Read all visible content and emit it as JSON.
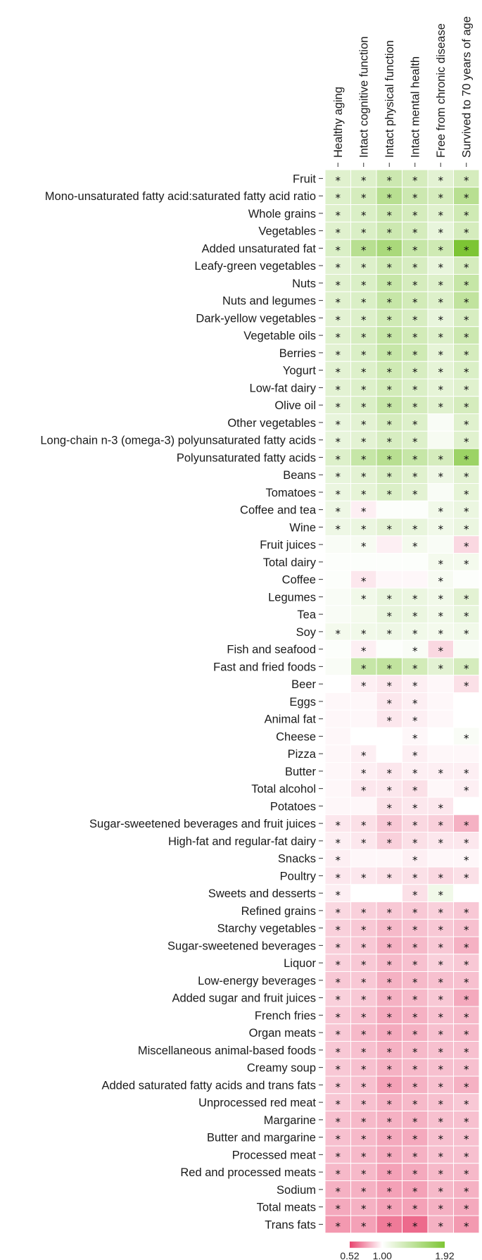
{
  "chart_data": {
    "type": "heatmap",
    "title": "",
    "columns": [
      "Healthy aging",
      "Intact cognitive function",
      "Intact physical function",
      "Intact mental health",
      "Free from chronic disease",
      "Survived to 70 years of age"
    ],
    "rows": [
      "Fruit",
      "Mono-unsaturated fatty acid:saturated fatty acid ratio",
      "Whole grains",
      "Vegetables",
      "Added unsaturated fat",
      "Leafy-green vegetables",
      "Nuts",
      "Nuts and legumes",
      "Dark-yellow vegetables",
      "Vegetable oils",
      "Berries",
      "Yogurt",
      "Low-fat dairy",
      "Olive oil",
      "Other vegetables",
      "Long-chain n-3 (omega-3) polyunsaturated fatty acids",
      "Polyunsaturated fatty acids",
      "Beans",
      "Tomatoes",
      "Coffee and tea",
      "Wine",
      "Fruit juices",
      "Total dairy",
      "Coffee",
      "Legumes",
      "Tea",
      "Soy",
      "Fish and seafood",
      "Fast and fried foods",
      "Beer",
      "Eggs",
      "Animal fat",
      "Cheese",
      "Pizza",
      "Butter",
      "Total alcohol",
      "Potatoes",
      "Sugar-sweetened beverages and fruit juices",
      "High-fat and regular-fat dairy",
      "Snacks",
      "Poultry",
      "Sweets and desserts",
      "Refined grains",
      "Starchy vegetables",
      "Sugar-sweetened beverages",
      "Liquor",
      "Low-energy beverages",
      "Added sugar and fruit juices",
      "French fries",
      "Organ meats",
      "Miscellaneous animal-based foods",
      "Creamy soup",
      "Added saturated fatty acids and trans fats",
      "Unprocessed red meat",
      "Margarine",
      "Butter and margarine",
      "Processed meat",
      "Red and processed meats",
      "Sodium",
      "Total meats",
      "Trans fats"
    ],
    "values": [
      [
        1.22,
        1.24,
        1.36,
        1.3,
        1.2,
        1.3
      ],
      [
        1.24,
        1.3,
        1.5,
        1.36,
        1.3,
        1.5
      ],
      [
        1.22,
        1.26,
        1.36,
        1.3,
        1.22,
        1.34
      ],
      [
        1.22,
        1.26,
        1.36,
        1.3,
        1.16,
        1.3
      ],
      [
        1.26,
        1.5,
        1.6,
        1.4,
        1.34,
        1.92
      ],
      [
        1.2,
        1.24,
        1.34,
        1.28,
        1.16,
        1.3
      ],
      [
        1.22,
        1.26,
        1.4,
        1.3,
        1.24,
        1.4
      ],
      [
        1.22,
        1.26,
        1.4,
        1.32,
        1.24,
        1.44
      ],
      [
        1.2,
        1.24,
        1.34,
        1.28,
        1.16,
        1.28
      ],
      [
        1.22,
        1.28,
        1.4,
        1.32,
        1.24,
        1.36
      ],
      [
        1.2,
        1.26,
        1.4,
        1.34,
        1.18,
        1.3
      ],
      [
        1.2,
        1.24,
        1.34,
        1.28,
        1.18,
        1.26
      ],
      [
        1.2,
        1.24,
        1.32,
        1.26,
        1.18,
        1.22
      ],
      [
        1.2,
        1.26,
        1.4,
        1.3,
        1.22,
        1.3
      ],
      [
        1.16,
        1.2,
        1.3,
        1.24,
        1.04,
        1.22
      ],
      [
        1.16,
        1.2,
        1.28,
        1.24,
        1.06,
        1.22
      ],
      [
        1.24,
        1.4,
        1.5,
        1.4,
        1.3,
        1.7
      ],
      [
        1.16,
        1.2,
        1.28,
        1.22,
        1.12,
        1.2
      ],
      [
        1.14,
        1.18,
        1.26,
        1.2,
        1.04,
        1.18
      ],
      [
        1.12,
        0.96,
        1.02,
        1.02,
        1.1,
        1.14
      ],
      [
        1.12,
        1.14,
        1.2,
        1.16,
        1.1,
        1.14
      ],
      [
        1.04,
        1.06,
        0.96,
        1.08,
        1.04,
        0.9
      ],
      [
        1.02,
        1.02,
        1.02,
        1.02,
        1.08,
        1.08
      ],
      [
        1.02,
        0.94,
        0.98,
        0.98,
        1.06,
        1.02
      ],
      [
        1.04,
        1.1,
        1.16,
        1.14,
        1.1,
        1.2
      ],
      [
        1.04,
        1.08,
        1.16,
        1.14,
        1.1,
        1.16
      ],
      [
        1.08,
        1.1,
        1.12,
        1.1,
        1.08,
        1.1
      ],
      [
        1.02,
        0.96,
        1.02,
        1.04,
        0.9,
        1.04
      ],
      [
        1.04,
        1.4,
        1.44,
        1.32,
        1.2,
        1.3
      ],
      [
        1.0,
        0.96,
        0.94,
        0.96,
        0.98,
        0.92
      ],
      [
        0.98,
        0.98,
        0.94,
        0.96,
        0.98,
        1.0
      ],
      [
        0.98,
        0.98,
        0.94,
        0.96,
        0.98,
        1.0
      ],
      [
        0.98,
        1.0,
        1.0,
        0.98,
        1.0,
        1.04
      ],
      [
        0.98,
        0.96,
        1.0,
        0.96,
        0.98,
        0.98
      ],
      [
        0.98,
        0.96,
        0.94,
        0.96,
        0.96,
        0.96
      ],
      [
        0.98,
        0.94,
        0.94,
        0.92,
        0.98,
        0.96
      ],
      [
        0.98,
        0.98,
        0.92,
        0.94,
        0.94,
        1.0
      ],
      [
        0.94,
        0.92,
        0.86,
        0.9,
        0.88,
        0.8
      ],
      [
        0.96,
        0.94,
        0.88,
        0.92,
        0.94,
        0.94
      ],
      [
        0.96,
        0.98,
        0.98,
        0.96,
        0.98,
        0.98
      ],
      [
        0.94,
        0.94,
        0.92,
        0.92,
        0.9,
        0.92
      ],
      [
        0.96,
        1.0,
        1.0,
        0.92,
        1.1,
        1.0
      ],
      [
        0.9,
        0.88,
        0.86,
        0.86,
        0.88,
        0.86
      ],
      [
        0.88,
        0.86,
        0.82,
        0.84,
        0.86,
        0.84
      ],
      [
        0.88,
        0.86,
        0.8,
        0.82,
        0.86,
        0.8
      ],
      [
        0.88,
        0.86,
        0.82,
        0.84,
        0.88,
        0.86
      ],
      [
        0.86,
        0.86,
        0.8,
        0.82,
        0.84,
        0.84
      ],
      [
        0.88,
        0.86,
        0.8,
        0.82,
        0.86,
        0.78
      ],
      [
        0.86,
        0.84,
        0.78,
        0.8,
        0.84,
        0.82
      ],
      [
        0.86,
        0.82,
        0.78,
        0.8,
        0.84,
        0.82
      ],
      [
        0.86,
        0.84,
        0.8,
        0.82,
        0.84,
        0.84
      ],
      [
        0.86,
        0.84,
        0.8,
        0.82,
        0.84,
        0.84
      ],
      [
        0.86,
        0.84,
        0.76,
        0.8,
        0.84,
        0.8
      ],
      [
        0.86,
        0.84,
        0.8,
        0.82,
        0.84,
        0.86
      ],
      [
        0.84,
        0.82,
        0.8,
        0.8,
        0.84,
        0.84
      ],
      [
        0.84,
        0.82,
        0.78,
        0.78,
        0.84,
        0.84
      ],
      [
        0.84,
        0.82,
        0.78,
        0.8,
        0.84,
        0.84
      ],
      [
        0.82,
        0.82,
        0.76,
        0.78,
        0.82,
        0.82
      ],
      [
        0.8,
        0.8,
        0.76,
        0.76,
        0.82,
        0.8
      ],
      [
        0.78,
        0.8,
        0.76,
        0.76,
        0.8,
        0.78
      ],
      [
        0.74,
        0.76,
        0.66,
        0.62,
        0.8,
        0.74
      ]
    ],
    "significant": [
      [
        1,
        1,
        1,
        1,
        1,
        1
      ],
      [
        1,
        1,
        1,
        1,
        1,
        1
      ],
      [
        1,
        1,
        1,
        1,
        1,
        1
      ],
      [
        1,
        1,
        1,
        1,
        1,
        1
      ],
      [
        1,
        1,
        1,
        1,
        1,
        1
      ],
      [
        1,
        1,
        1,
        1,
        1,
        1
      ],
      [
        1,
        1,
        1,
        1,
        1,
        1
      ],
      [
        1,
        1,
        1,
        1,
        1,
        1
      ],
      [
        1,
        1,
        1,
        1,
        1,
        1
      ],
      [
        1,
        1,
        1,
        1,
        1,
        1
      ],
      [
        1,
        1,
        1,
        1,
        1,
        1
      ],
      [
        1,
        1,
        1,
        1,
        1,
        1
      ],
      [
        1,
        1,
        1,
        1,
        1,
        1
      ],
      [
        1,
        1,
        1,
        1,
        1,
        1
      ],
      [
        1,
        1,
        1,
        1,
        0,
        1
      ],
      [
        1,
        1,
        1,
        1,
        0,
        1
      ],
      [
        1,
        1,
        1,
        1,
        1,
        1
      ],
      [
        1,
        1,
        1,
        1,
        1,
        1
      ],
      [
        1,
        1,
        1,
        1,
        0,
        1
      ],
      [
        1,
        1,
        0,
        0,
        1,
        1
      ],
      [
        1,
        1,
        1,
        1,
        1,
        1
      ],
      [
        0,
        1,
        0,
        1,
        0,
        1
      ],
      [
        0,
        0,
        0,
        0,
        1,
        1
      ],
      [
        0,
        1,
        0,
        0,
        1,
        0
      ],
      [
        0,
        1,
        1,
        1,
        1,
        1
      ],
      [
        0,
        0,
        1,
        1,
        1,
        1
      ],
      [
        1,
        1,
        1,
        1,
        1,
        1
      ],
      [
        0,
        1,
        0,
        1,
        1,
        0
      ],
      [
        0,
        1,
        1,
        1,
        1,
        1
      ],
      [
        0,
        1,
        1,
        1,
        0,
        1
      ],
      [
        0,
        0,
        1,
        1,
        0,
        0
      ],
      [
        0,
        0,
        1,
        1,
        0,
        0
      ],
      [
        0,
        0,
        0,
        1,
        0,
        1
      ],
      [
        0,
        1,
        0,
        1,
        0,
        0
      ],
      [
        0,
        1,
        1,
        1,
        1,
        1
      ],
      [
        0,
        1,
        1,
        1,
        0,
        1
      ],
      [
        0,
        0,
        1,
        1,
        1,
        0
      ],
      [
        1,
        1,
        1,
        1,
        1,
        1
      ],
      [
        1,
        1,
        1,
        1,
        1,
        1
      ],
      [
        1,
        0,
        0,
        1,
        0,
        1
      ],
      [
        1,
        1,
        1,
        1,
        1,
        1
      ],
      [
        1,
        0,
        0,
        1,
        1,
        0
      ],
      [
        1,
        1,
        1,
        1,
        1,
        1
      ],
      [
        1,
        1,
        1,
        1,
        1,
        1
      ],
      [
        1,
        1,
        1,
        1,
        1,
        1
      ],
      [
        1,
        1,
        1,
        1,
        1,
        1
      ],
      [
        1,
        1,
        1,
        1,
        1,
        1
      ],
      [
        1,
        1,
        1,
        1,
        1,
        1
      ],
      [
        1,
        1,
        1,
        1,
        1,
        1
      ],
      [
        1,
        1,
        1,
        1,
        1,
        1
      ],
      [
        1,
        1,
        1,
        1,
        1,
        1
      ],
      [
        1,
        1,
        1,
        1,
        1,
        1
      ],
      [
        1,
        1,
        1,
        1,
        1,
        1
      ],
      [
        1,
        1,
        1,
        1,
        1,
        1
      ],
      [
        1,
        1,
        1,
        1,
        1,
        1
      ],
      [
        1,
        1,
        1,
        1,
        1,
        1
      ],
      [
        1,
        1,
        1,
        1,
        1,
        1
      ],
      [
        1,
        1,
        1,
        1,
        1,
        1
      ],
      [
        1,
        1,
        1,
        1,
        1,
        1
      ],
      [
        1,
        1,
        1,
        1,
        1,
        1
      ],
      [
        1,
        1,
        1,
        1,
        1,
        1
      ]
    ],
    "significance_marker": "*",
    "color_scale": {
      "min": 0.52,
      "mid": 1.0,
      "max": 1.92,
      "min_color": "#e8436e",
      "mid_color": "#ffffff",
      "max_color": "#7dc534",
      "tick_labels": [
        "0.52",
        "1.00",
        "1.92"
      ]
    }
  }
}
